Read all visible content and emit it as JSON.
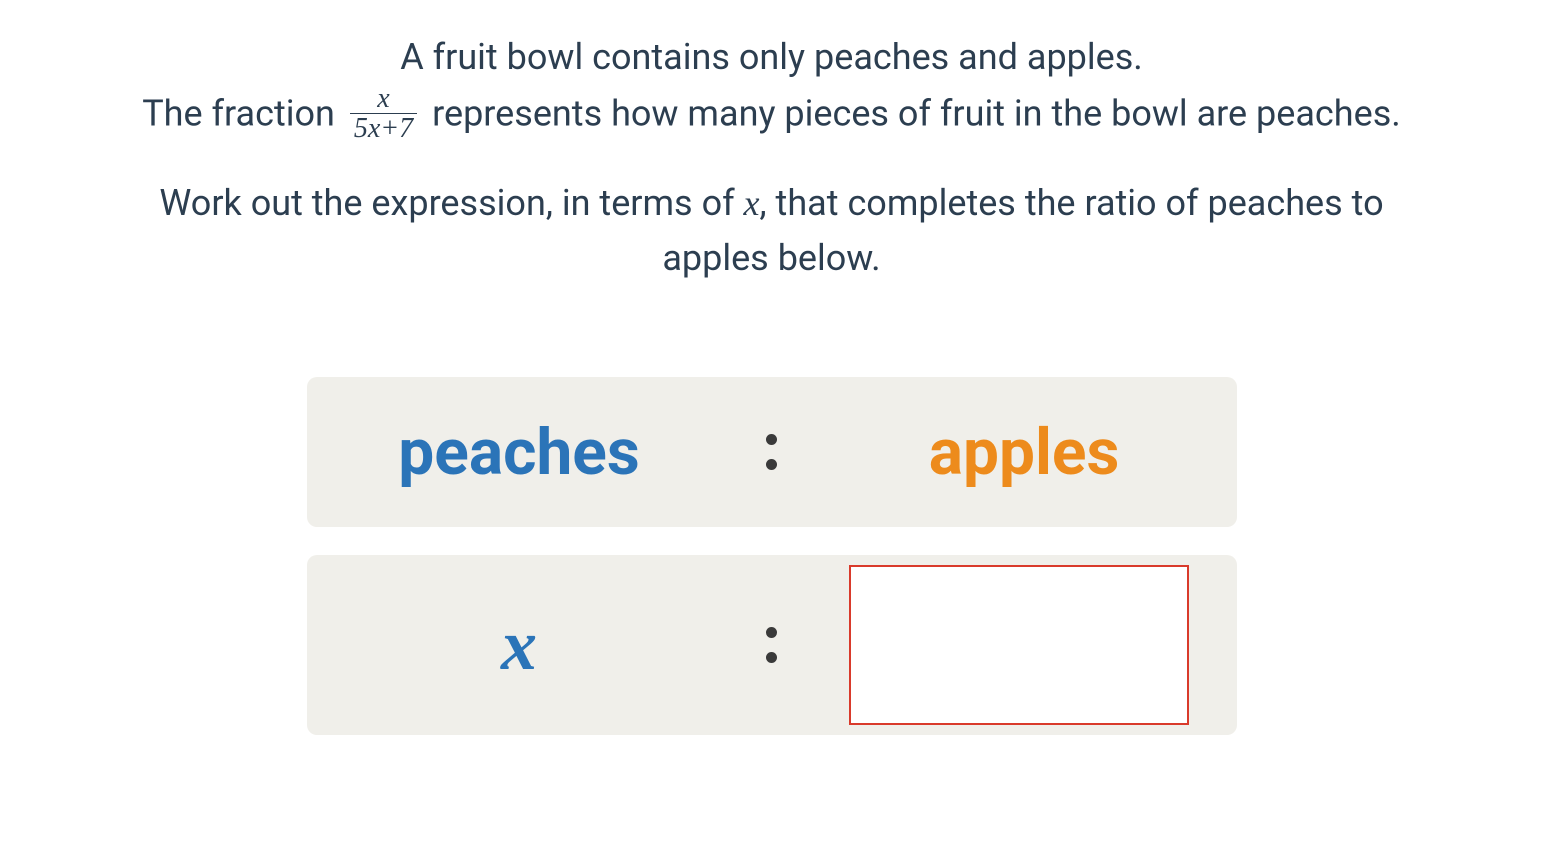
{
  "question": {
    "line1": "A fruit bowl contains only peaches and apples.",
    "line2_pre": "The fraction ",
    "fraction": {
      "numerator": "x",
      "denominator": "5x+7"
    },
    "line2_post": " represents how many pieces of fruit in the bowl are peaches.",
    "line3_a": "Work out the expression, in terms of ",
    "line3_var": "x",
    "line3_b": ", that completes the ratio of peaches to",
    "line3_c": "apples below."
  },
  "ratio": {
    "header_left": "peaches",
    "header_right": "apples",
    "value_left": "x",
    "value_right": ""
  },
  "colors": {
    "peaches": "#2b74b8",
    "apples": "#ed8b1c",
    "text": "#2c3e50",
    "row_bg": "#f0efea",
    "answer_border": "#d93a2b",
    "background": "#ffffff"
  },
  "typography": {
    "body_fontsize": 36,
    "ratio_label_fontsize": 64,
    "x_fontsize": 72,
    "fraction_fontsize": 28
  }
}
